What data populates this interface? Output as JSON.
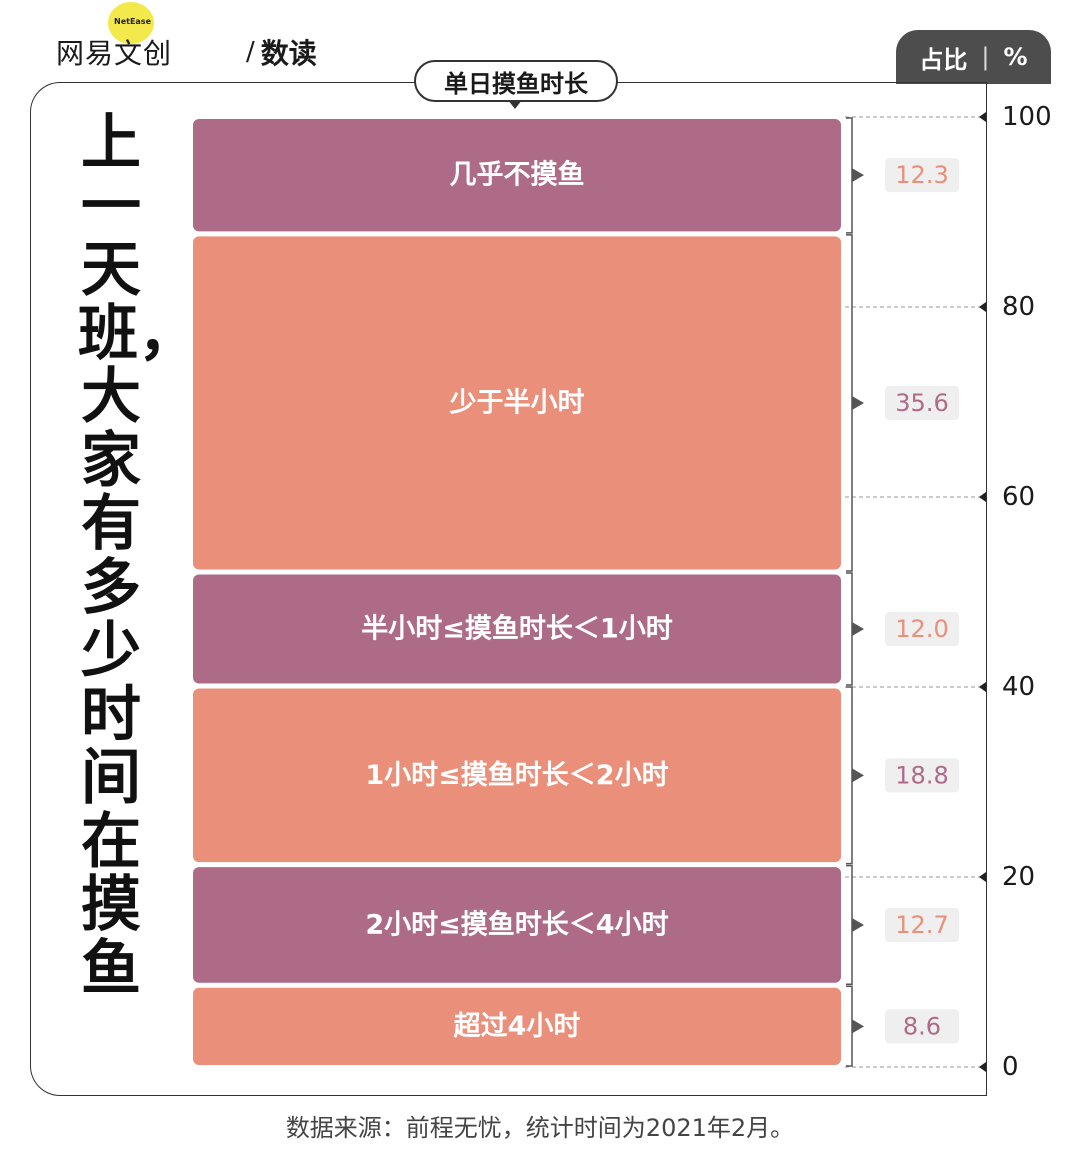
{
  "brand": {
    "main": "网易文创",
    "badge": "NetEase",
    "slash": "/",
    "sub": "数读"
  },
  "unit_tab": {
    "left": "占比",
    "sep": "|",
    "right": "%"
  },
  "title": "上一天班，大家有多少时间在摸鱼",
  "colors": {
    "purple": "#ad6b88",
    "salmon": "#e98f7a",
    "badge_bg": "#efefef"
  },
  "chart_data": {
    "type": "bar",
    "stacked": true,
    "title": "单日摸鱼时长",
    "ylabel": "占比 %",
    "ylim": [
      0,
      100
    ],
    "yticks": [
      0,
      20,
      40,
      60,
      80,
      100
    ],
    "categories": [
      "几乎不摸鱼",
      "少于半小时",
      "半小时≤摸鱼时长＜1小时",
      "1小时≤摸鱼时长＜2小时",
      "2小时≤摸鱼时长＜4小时",
      "超过4小时"
    ],
    "values": [
      12.3,
      35.6,
      12.0,
      18.8,
      12.7,
      8.6
    ],
    "value_labels": [
      "12.3",
      "35.6",
      "12.0",
      "18.8",
      "12.7",
      "8.6"
    ],
    "segment_colors": [
      "#ad6b88",
      "#e98f7a",
      "#ad6b88",
      "#e98f7a",
      "#ad6b88",
      "#e98f7a"
    ],
    "label_colors": [
      "#e98f7a",
      "#ad6b88",
      "#e98f7a",
      "#ad6b88",
      "#e98f7a",
      "#ad6b88"
    ]
  },
  "footer": "数据来源：前程无忧，统计时间为2021年2月。"
}
